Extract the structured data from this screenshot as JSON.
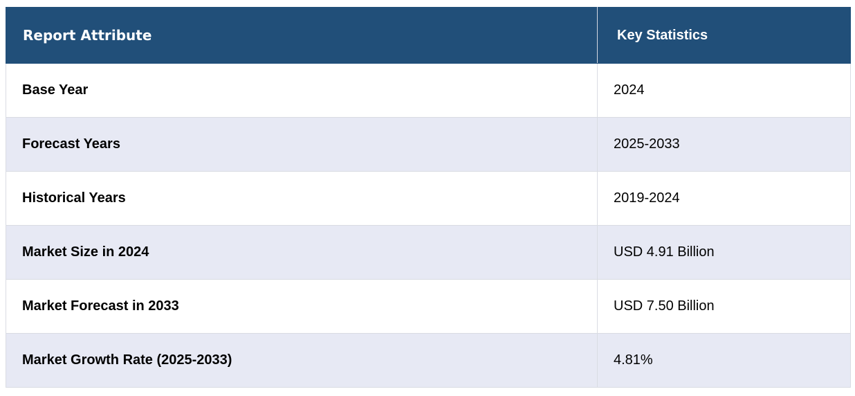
{
  "table": {
    "headers": [
      "Report Attribute",
      "Key Statistics"
    ],
    "rows": [
      {
        "attribute": "Base Year",
        "value": "2024"
      },
      {
        "attribute": "Forecast Years",
        "value": "2025-2033"
      },
      {
        "attribute": "Historical Years",
        "value": "2019-2024"
      },
      {
        "attribute": "Market Size in 2024",
        "value": "USD 4.91 Billion"
      },
      {
        "attribute": "Market Forecast in 2033",
        "value": "USD 7.50 Billion"
      },
      {
        "attribute": "Market Growth Rate (2025-2033)",
        "value": "4.81%"
      }
    ]
  },
  "colors": {
    "header_bg": "#214f79",
    "header_text": "#ffffff",
    "row_alt_bg": "#e7e9f4",
    "row_bg": "#ffffff",
    "border": "#d9dce3"
  }
}
